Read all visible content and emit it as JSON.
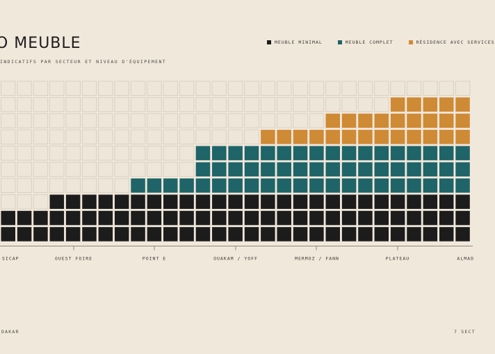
{
  "header": {
    "title": "O MEUBLE",
    "subtitle": "INDICATIFS PAR SECTEUR ET NIVEAU D'ÉQUIPEMENT"
  },
  "footer": {
    "left": "DAKAR",
    "right": "7 SECT"
  },
  "colors": {
    "background": "#f1e8dc",
    "empty_cell": "#efe6da",
    "empty_stroke": "#d9cfc2",
    "minimal": "#1c1c1c",
    "complet": "#1f6468",
    "services": "#cf8a35"
  },
  "chart_data": {
    "type": "waffle",
    "title": "O MEUBLE",
    "subtitle": "INDICATIFS PAR SECTEUR ET NIVEAU D'ÉQUIPEMENT",
    "legend_position": "top-right",
    "grid_rows": 10,
    "categories": [
      "SICAP",
      "OUEST FOIRE",
      "POINT E",
      "OUAKAM / YOFF",
      "MERMOZ / FANN",
      "PLATEAU",
      "ALMAD"
    ],
    "series": [
      {
        "name": "MEUBLE MINIMAL",
        "color": "#1c1c1c",
        "values": [
          2,
          3,
          3,
          3,
          3,
          3,
          3
        ]
      },
      {
        "name": "MEUBLE COMPLET",
        "color": "#1f6468",
        "values": [
          0,
          0,
          1,
          3,
          3,
          3,
          3
        ]
      },
      {
        "name": "RÉSIDENCE AVEC SERVICES",
        "color": "#cf8a35",
        "values": [
          0,
          0,
          0,
          0,
          1,
          2,
          3
        ]
      }
    ]
  }
}
